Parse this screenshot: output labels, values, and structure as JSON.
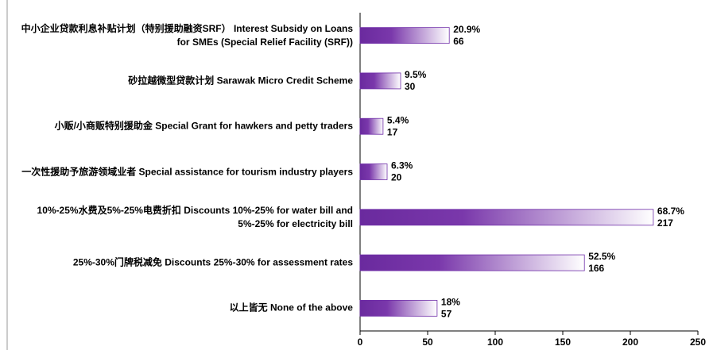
{
  "chart_data": {
    "type": "bar",
    "orientation": "horizontal",
    "categories": [
      "中小企业贷款利息补贴计划（特别援助融资SRF） Interest Subsidy on Loans for SMEs (Special Relief Facility (SRF))",
      "砂拉越微型贷款计划 Sarawak Micro Credit Scheme",
      "小贩/小商贩特别援助金 Special Grant for hawkers and petty traders",
      "一次性援助予旅游领域业者 Special assistance for tourism industry players",
      "10%-25%水费及5%-25%电费折扣 Discounts 10%-25% for water bill and 5%-25% for electricity bill",
      "25%-30%门牌税减免 Discounts 25%-30% for assessment rates",
      "以上皆无 None of the above"
    ],
    "values": [
      66,
      30,
      17,
      20,
      217,
      166,
      57
    ],
    "share_values": [
      20.9,
      9.5,
      5.4,
      6.3,
      68.7,
      52.5,
      18
    ],
    "share_labels": [
      "20.9%",
      "9.5%",
      "5.4%",
      "6.3%",
      "68.7%",
      "52.5%",
      "18%"
    ],
    "color": "#6f2da8",
    "xlim": [
      0,
      250
    ],
    "xticks": [
      0,
      50,
      100,
      150,
      200,
      250
    ]
  }
}
